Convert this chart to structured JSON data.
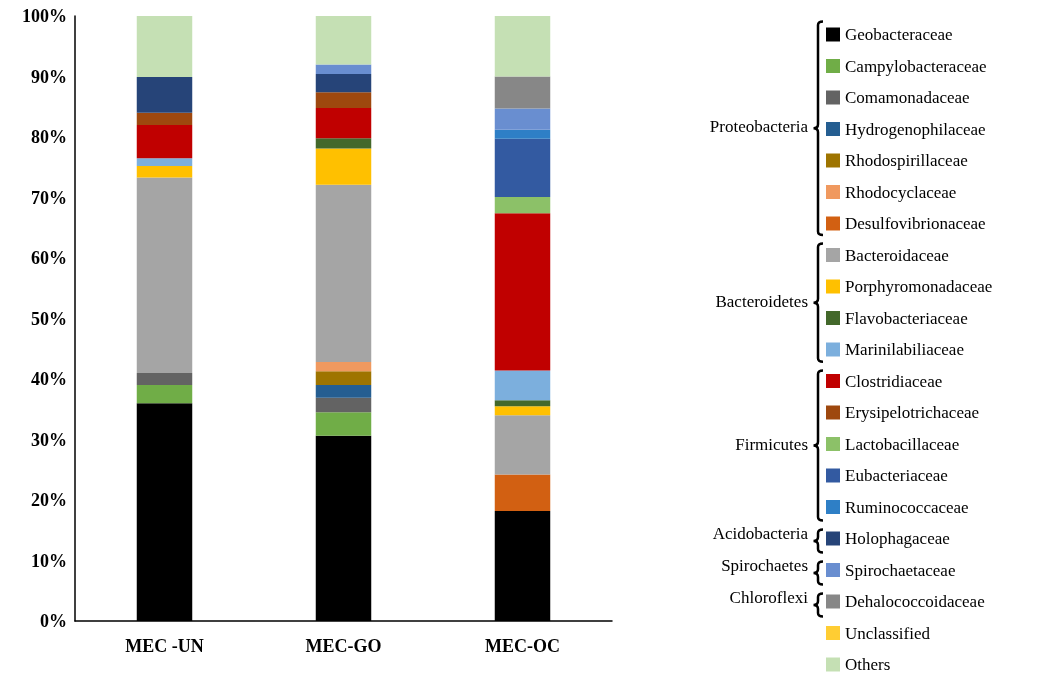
{
  "chart_data": {
    "type": "bar",
    "stacked": true,
    "categories": [
      "MEC -UN",
      "MEC-GO",
      "MEC-OC"
    ],
    "ylim": [
      0,
      100
    ],
    "yticks": [
      {
        "value": 0,
        "label": "0%"
      },
      {
        "value": 10,
        "label": "10%"
      },
      {
        "value": 20,
        "label": "20%"
      },
      {
        "value": 30,
        "label": "30%"
      },
      {
        "value": 40,
        "label": "40%"
      },
      {
        "value": 50,
        "label": "50%"
      },
      {
        "value": 60,
        "label": "60%"
      },
      {
        "value": 70,
        "label": "70%"
      },
      {
        "value": 80,
        "label": "80%"
      },
      {
        "value": 90,
        "label": "90%"
      },
      {
        "value": 100,
        "label": "100%"
      }
    ],
    "grid": false,
    "legend": "right",
    "annotations": [
      "Proteobacteria",
      "Bacteroidetes",
      "Firmicutes",
      "Acidobacteria",
      "Spirochaetes",
      "Chloroflexi"
    ],
    "series": [
      {
        "name": "Geobacteraceae",
        "color": "#000000",
        "values": [
          36,
          30.6,
          18.2
        ]
      },
      {
        "name": "Campylobacteraceae",
        "color": "#70ad47",
        "values": [
          3,
          3.9,
          null
        ]
      },
      {
        "name": "Comamonadaceae",
        "color": "#636363",
        "values": [
          2,
          2.4,
          null
        ]
      },
      {
        "name": "Hydrogenophilaceae",
        "color": "#255e91",
        "values": [
          null,
          2.1,
          null
        ]
      },
      {
        "name": "Rhodospirillaceae",
        "color": "#9e7400",
        "values": [
          null,
          2.3,
          null
        ]
      },
      {
        "name": "Rhodocyclaceae",
        "color": "#f0995f",
        "values": [
          null,
          1.5,
          null
        ]
      },
      {
        "name": "Desulfovibrionaceae",
        "color": "#d26012",
        "values": [
          null,
          null,
          6.0
        ]
      },
      {
        "name": "Bacteroidaceae",
        "color": "#a5a5a5",
        "values": [
          32.3,
          29.3,
          9.8
        ]
      },
      {
        "name": "Porphyromonadaceae",
        "color": "#ffc000",
        "values": [
          1.9,
          6.0,
          1.5
        ]
      },
      {
        "name": "Flavobacteriaceae",
        "color": "#43682b",
        "values": [
          null,
          1.7,
          1.0
        ]
      },
      {
        "name": "Marinilabiliaceae",
        "color": "#7cafdd",
        "values": [
          1.3,
          null,
          4.9
        ]
      },
      {
        "name": "Clostridiaceae",
        "color": "#c00000",
        "values": [
          5.5,
          5.0,
          26.0
        ]
      },
      {
        "name": "Erysipelotrichaceae",
        "color": "#9e480e",
        "values": [
          2,
          2.6,
          null
        ]
      },
      {
        "name": "Lactobacillaceae",
        "color": "#8cc168",
        "values": [
          null,
          null,
          2.7
        ]
      },
      {
        "name": "Eubacteriaceae",
        "color": "#335aa1",
        "values": [
          null,
          null,
          9.6
        ]
      },
      {
        "name": "Ruminococcaceae",
        "color": "#2e7fc6",
        "values": [
          null,
          null,
          1.5
        ]
      },
      {
        "name": "Holophagaceae",
        "color": "#264478",
        "values": [
          5.9,
          3.0,
          null
        ]
      },
      {
        "name": "Spirochaetaceae",
        "color": "#698ed0",
        "values": [
          null,
          1.6,
          3.5
        ]
      },
      {
        "name": "Dehalococcoidaceae",
        "color": "#878787",
        "values": [
          null,
          null,
          5.3
        ]
      },
      {
        "name": "Unclassified",
        "color": "#ffcd33",
        "values": [
          null,
          null,
          null
        ]
      },
      {
        "name": "Others",
        "color": "#c5e0b4",
        "values": [
          10.1,
          8.0,
          10.0
        ]
      }
    ]
  }
}
